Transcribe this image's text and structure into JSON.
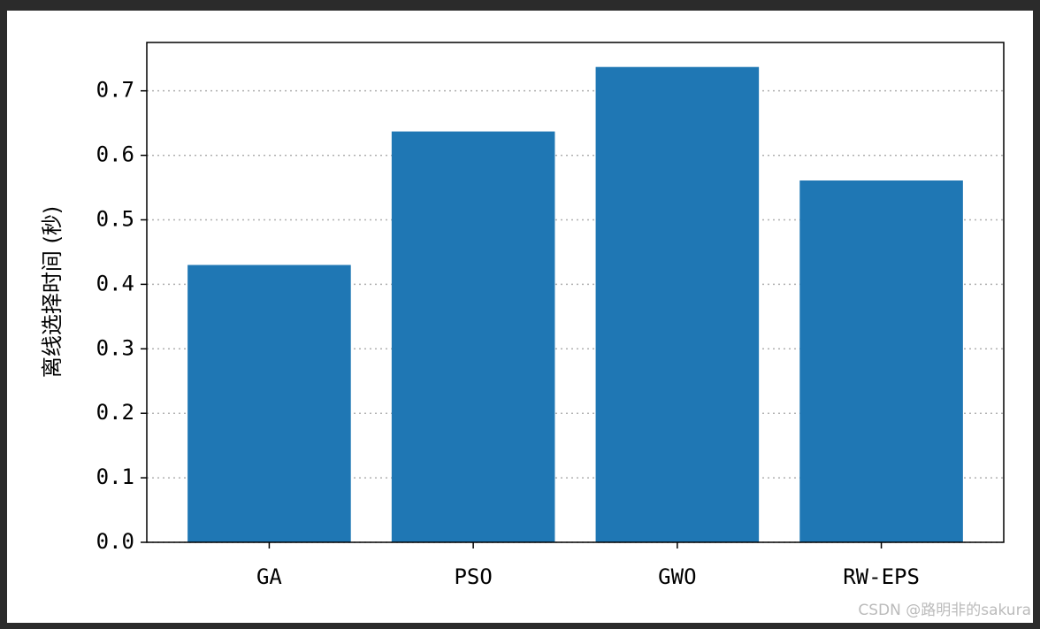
{
  "chart_data": {
    "type": "bar",
    "ylabel": "离线选择时间 (秒)",
    "categories": [
      "GA",
      "PSO",
      "GWO",
      "RW-EPS"
    ],
    "values": [
      0.43,
      0.637,
      0.737,
      0.561
    ],
    "color": "#1f77b4",
    "ylim": [
      0,
      0.775
    ],
    "yticks": [
      {
        "value": 0,
        "label": "0.0"
      },
      0.1,
      0.2,
      0.3,
      0.4,
      0.5,
      0.6,
      0.7
    ],
    "grid": true,
    "watermark": "CSDN @路明非的sakura"
  }
}
